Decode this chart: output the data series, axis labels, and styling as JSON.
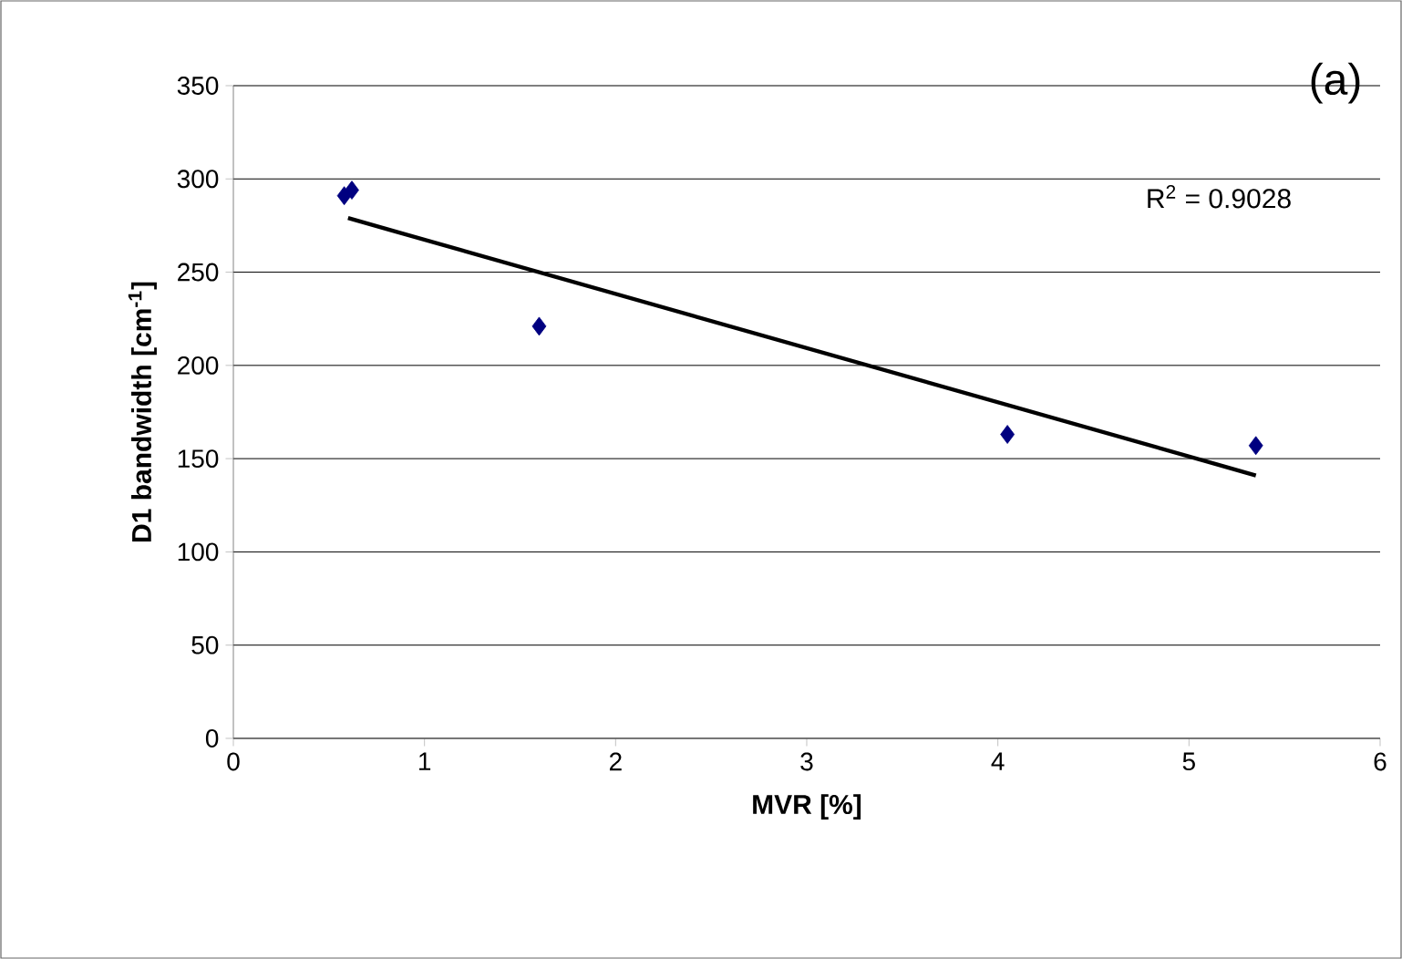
{
  "chart_data": {
    "type": "scatter",
    "title": "(a)",
    "xlabel": "MVR [%]",
    "ylabel": "D1 bandwidth [cm$^{-1}$]",
    "annotations": [
      "R$^{2}$ = 0.9028"
    ],
    "series": [
      {
        "color": "#000080",
        "marker": "diamond",
        "x": [
          0.58,
          0.62,
          1.6,
          4.05,
          5.35
        ],
        "values": [
          291,
          294,
          221,
          163,
          157
        ]
      },
      {
        "type": "line",
        "color": "#000000",
        "marker": "none",
        "x": [
          0.6,
          5.35
        ],
        "values": [
          279,
          141
        ]
      }
    ],
    "xlim": [
      0,
      6
    ],
    "ylim": [
      0,
      350
    ],
    "xticks": [
      0,
      1,
      2,
      3,
      4,
      5,
      6
    ],
    "yticks": [
      0,
      50,
      100,
      150,
      200,
      250,
      300,
      350
    ],
    "grid": "y"
  }
}
